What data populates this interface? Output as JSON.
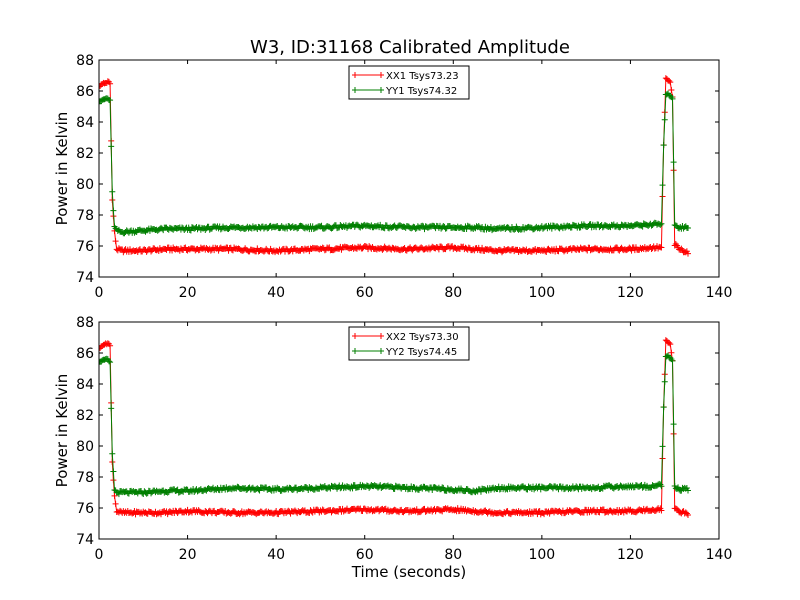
{
  "figure": {
    "title": "W3, ID:31168 Calibrated Amplitude"
  },
  "colors": {
    "series_xx": "#ff0000",
    "series_yy": "#007f00",
    "axes": "#000000",
    "background": "#ffffff"
  },
  "chart_data": [
    {
      "type": "line",
      "title": "W3, ID:31168 Calibrated Amplitude",
      "xlabel": "",
      "ylabel": "Power in Kelvin",
      "xlim": [
        0,
        140
      ],
      "ylim": [
        74,
        88
      ],
      "xticks": [
        0,
        20,
        40,
        60,
        80,
        100,
        120,
        140
      ],
      "yticks": [
        74,
        76,
        78,
        80,
        82,
        84,
        86,
        88
      ],
      "grid": false,
      "legend_position": "top-center",
      "marker": "plus",
      "series": [
        {
          "name": "XX1 Tsys73.23",
          "color": "#ff0000",
          "points": [
            [
              0,
              86.3
            ],
            [
              0.5,
              86.4
            ],
            [
              1,
              86.5
            ],
            [
              1.5,
              86.5
            ],
            [
              2,
              86.6
            ],
            [
              2.5,
              86.5
            ],
            [
              3,
              79
            ],
            [
              3.5,
              76.9
            ],
            [
              4,
              75.8
            ],
            [
              5,
              75.7
            ],
            [
              10,
              75.7
            ],
            [
              15,
              75.8
            ],
            [
              20,
              75.8
            ],
            [
              30,
              75.8
            ],
            [
              40,
              75.7
            ],
            [
              50,
              75.8
            ],
            [
              60,
              75.9
            ],
            [
              70,
              75.8
            ],
            [
              80,
              75.9
            ],
            [
              85,
              75.8
            ],
            [
              90,
              75.7
            ],
            [
              100,
              75.7
            ],
            [
              110,
              75.8
            ],
            [
              120,
              75.8
            ],
            [
              125,
              75.9
            ],
            [
              127,
              75.9
            ],
            [
              127.5,
              82.5
            ],
            [
              128,
              86.8
            ],
            [
              128.5,
              86.7
            ],
            [
              129,
              86.6
            ],
            [
              129.5,
              85.6
            ],
            [
              130,
              76.1
            ],
            [
              131,
              75.8
            ],
            [
              132,
              75.7
            ],
            [
              133,
              75.6
            ]
          ]
        },
        {
          "name": "YY1 Tsys74.32",
          "color": "#007f00",
          "points": [
            [
              0,
              85.2
            ],
            [
              0.5,
              85.4
            ],
            [
              1,
              85.5
            ],
            [
              1.5,
              85.5
            ],
            [
              2,
              85.5
            ],
            [
              2.5,
              85.4
            ],
            [
              3,
              79.5
            ],
            [
              3.5,
              77.2
            ],
            [
              4,
              77
            ],
            [
              5,
              76.9
            ],
            [
              10,
              77
            ],
            [
              15,
              77.1
            ],
            [
              20,
              77.1
            ],
            [
              30,
              77.2
            ],
            [
              40,
              77.2
            ],
            [
              50,
              77.2
            ],
            [
              60,
              77.3
            ],
            [
              70,
              77.2
            ],
            [
              80,
              77.2
            ],
            [
              85,
              77.2
            ],
            [
              90,
              77.1
            ],
            [
              100,
              77.2
            ],
            [
              110,
              77.3
            ],
            [
              120,
              77.3
            ],
            [
              125,
              77.4
            ],
            [
              127,
              77.4
            ],
            [
              127.5,
              82.5
            ],
            [
              128,
              85.8
            ],
            [
              128.5,
              85.8
            ],
            [
              129,
              85.7
            ],
            [
              129.5,
              85.5
            ],
            [
              130,
              77.4
            ],
            [
              131,
              77.2
            ],
            [
              132,
              77.2
            ],
            [
              133,
              77.2
            ]
          ]
        }
      ]
    },
    {
      "type": "line",
      "title": "",
      "xlabel": "Time (seconds)",
      "ylabel": "Power in Kelvin",
      "xlim": [
        0,
        140
      ],
      "ylim": [
        74,
        88
      ],
      "xticks": [
        0,
        20,
        40,
        60,
        80,
        100,
        120,
        140
      ],
      "yticks": [
        74,
        76,
        78,
        80,
        82,
        84,
        86,
        88
      ],
      "grid": false,
      "legend_position": "top-center",
      "marker": "plus",
      "series": [
        {
          "name": "XX2 Tsys73.30",
          "color": "#ff0000",
          "points": [
            [
              0,
              86.3
            ],
            [
              0.5,
              86.4
            ],
            [
              1,
              86.5
            ],
            [
              1.5,
              86.6
            ],
            [
              2,
              86.6
            ],
            [
              2.5,
              86.5
            ],
            [
              3,
              79
            ],
            [
              3.5,
              76.8
            ],
            [
              4,
              75.8
            ],
            [
              5,
              75.7
            ],
            [
              10,
              75.7
            ],
            [
              15,
              75.7
            ],
            [
              20,
              75.8
            ],
            [
              30,
              75.7
            ],
            [
              40,
              75.7
            ],
            [
              50,
              75.8
            ],
            [
              60,
              75.9
            ],
            [
              70,
              75.8
            ],
            [
              80,
              75.9
            ],
            [
              85,
              75.8
            ],
            [
              90,
              75.7
            ],
            [
              100,
              75.7
            ],
            [
              110,
              75.8
            ],
            [
              120,
              75.8
            ],
            [
              125,
              75.9
            ],
            [
              127,
              75.9
            ],
            [
              127.5,
              82.5
            ],
            [
              128,
              86.8
            ],
            [
              128.5,
              86.7
            ],
            [
              129,
              86.6
            ],
            [
              129.5,
              85.5
            ],
            [
              130,
              76
            ],
            [
              131,
              75.8
            ],
            [
              132,
              75.7
            ],
            [
              133,
              75.6
            ]
          ]
        },
        {
          "name": "YY2 Tsys74.45",
          "color": "#007f00",
          "points": [
            [
              0,
              85.3
            ],
            [
              0.5,
              85.5
            ],
            [
              1,
              85.6
            ],
            [
              1.5,
              85.6
            ],
            [
              2,
              85.6
            ],
            [
              2.5,
              85.4
            ],
            [
              3,
              79.5
            ],
            [
              3.5,
              77.2
            ],
            [
              4,
              77
            ],
            [
              5,
              77
            ],
            [
              10,
              77
            ],
            [
              15,
              77.1
            ],
            [
              20,
              77.1
            ],
            [
              30,
              77.3
            ],
            [
              40,
              77.2
            ],
            [
              50,
              77.3
            ],
            [
              60,
              77.4
            ],
            [
              70,
              77.3
            ],
            [
              80,
              77.2
            ],
            [
              85,
              77.1
            ],
            [
              90,
              77.3
            ],
            [
              100,
              77.3
            ],
            [
              110,
              77.3
            ],
            [
              120,
              77.4
            ],
            [
              125,
              77.4
            ],
            [
              127,
              77.5
            ],
            [
              127.5,
              82.5
            ],
            [
              128,
              85.8
            ],
            [
              128.5,
              85.8
            ],
            [
              129,
              85.7
            ],
            [
              129.5,
              85.5
            ],
            [
              130,
              77.4
            ],
            [
              131,
              77.2
            ],
            [
              132,
              77.2
            ],
            [
              133,
              77.2
            ]
          ]
        }
      ]
    }
  ]
}
